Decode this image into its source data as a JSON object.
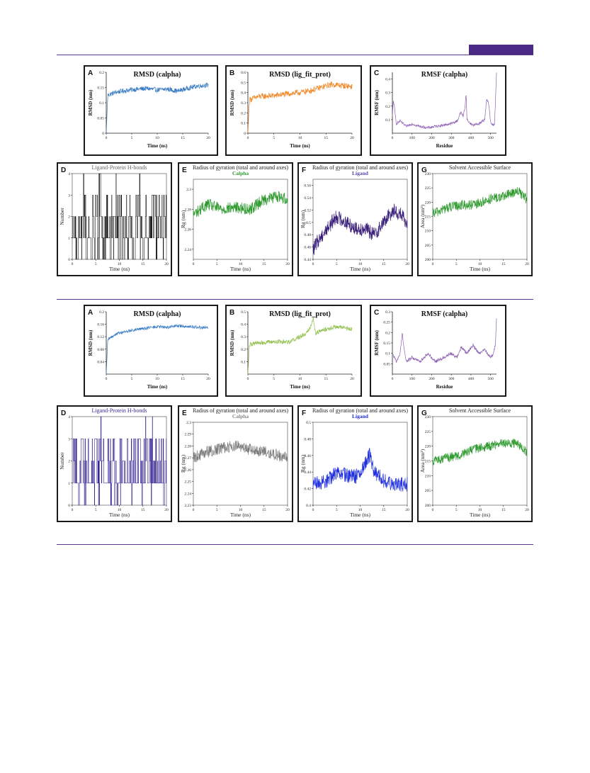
{
  "colors": {
    "rule": "#5b3a8c",
    "header_tag": "#4b2a86"
  },
  "chart_data": [
    {
      "group": 1,
      "panel": "A",
      "type": "line",
      "title": "RMSD (calpha)",
      "xlabel": "Time (ns)",
      "ylabel": "RMSD (nm)",
      "xlim": [
        0,
        20
      ],
      "ylim": [
        0,
        0.2
      ],
      "xticks": [
        0,
        5,
        10,
        15,
        20
      ],
      "yticks": [
        0,
        0.05,
        0.1,
        0.15,
        0.2
      ],
      "color": "#3a7cc4",
      "noise": 0.008,
      "series": [
        {
          "x": [
            0,
            0.3,
            2,
            5,
            8,
            10,
            12,
            14,
            16,
            18,
            20
          ],
          "y": [
            0,
            0.125,
            0.135,
            0.143,
            0.147,
            0.142,
            0.145,
            0.138,
            0.148,
            0.155,
            0.158
          ]
        }
      ]
    },
    {
      "group": 1,
      "panel": "B",
      "type": "line",
      "title": "RMSD (lig_fit_prot)",
      "xlabel": "Time (ns)",
      "ylabel": "RMSD (nm)",
      "xlim": [
        0,
        20
      ],
      "ylim": [
        0,
        0.6
      ],
      "xticks": [
        0,
        5,
        10,
        15,
        20
      ],
      "yticks": [
        0,
        0.1,
        0.2,
        0.3,
        0.4,
        0.5,
        0.6
      ],
      "color": "#f08a2c",
      "noise": 0.03,
      "series": [
        {
          "x": [
            0,
            0.3,
            2,
            5,
            8,
            10,
            12,
            14,
            16,
            18,
            20
          ],
          "y": [
            0,
            0.33,
            0.36,
            0.37,
            0.39,
            0.4,
            0.42,
            0.45,
            0.48,
            0.47,
            0.46
          ]
        }
      ]
    },
    {
      "group": 1,
      "panel": "C",
      "type": "line",
      "title": "RMSF (calpha)",
      "xlabel": "Residue",
      "ylabel": "RMSF (nm)",
      "xlim": [
        0,
        530
      ],
      "ylim": [
        0,
        0.45
      ],
      "xticks": [
        0,
        100,
        200,
        300,
        400,
        500
      ],
      "yticks": [
        0.1,
        0.2,
        0.3,
        0.4
      ],
      "color": "#8e62b3",
      "noise": 0.01,
      "series": [
        {
          "x": [
            0,
            5,
            20,
            40,
            70,
            100,
            140,
            180,
            220,
            260,
            300,
            330,
            350,
            360,
            370,
            375,
            380,
            390,
            410,
            440,
            470,
            480,
            490,
            500,
            510,
            520,
            525,
            530
          ],
          "y": [
            0.12,
            0.25,
            0.07,
            0.09,
            0.05,
            0.07,
            0.05,
            0.04,
            0.05,
            0.06,
            0.07,
            0.09,
            0.16,
            0.12,
            0.2,
            0.29,
            0.1,
            0.08,
            0.06,
            0.07,
            0.1,
            0.25,
            0.22,
            0.08,
            0.06,
            0.07,
            0.25,
            0.44
          ]
        }
      ]
    },
    {
      "group": 1,
      "panel": "D",
      "type": "line",
      "title": "Ligand-Protein H-bonds",
      "xlabel": "Time (ns)",
      "ylabel": "Number",
      "xlim": [
        0,
        20
      ],
      "ylim": [
        0,
        4
      ],
      "xticks": [
        0,
        5,
        10,
        15,
        20
      ],
      "yticks": [
        0,
        1,
        2,
        3,
        4
      ],
      "color": "#1c1c1c",
      "noise": 0,
      "series": [
        {
          "x": [
            0,
            20
          ],
          "y": [
            1,
            2
          ]
        }
      ]
    },
    {
      "group": 1,
      "panel": "E",
      "type": "line",
      "title": "Radius of gyration (total and around axes)",
      "subtitle": "Calpha",
      "xlabel": "Time (ns)",
      "ylabel": "Rg (nm)",
      "xlim": [
        0,
        20
      ],
      "ylim": [
        2.23,
        2.31
      ],
      "xticks": [
        0,
        5,
        10,
        15,
        20
      ],
      "yticks": [
        2.24,
        2.26,
        2.28,
        2.3
      ],
      "color": "#2f9a2f",
      "subcolor": "#2f9a2f",
      "noise": 0.006,
      "series": [
        {
          "x": [
            0,
            3,
            6,
            9,
            12,
            15,
            18,
            20
          ],
          "y": [
            2.275,
            2.285,
            2.28,
            2.282,
            2.28,
            2.29,
            2.293,
            2.29
          ]
        }
      ]
    },
    {
      "group": 1,
      "panel": "F",
      "type": "line",
      "title": "Radius of gyration (total and around axes)",
      "subtitle": "Ligand",
      "xlabel": "Time (ns)",
      "ylabel": "Rg (nm)",
      "xlim": [
        0,
        20
      ],
      "ylim": [
        0.44,
        0.57
      ],
      "xticks": [
        0,
        5,
        10,
        15,
        20
      ],
      "yticks": [
        0.44,
        0.46,
        0.48,
        0.5,
        0.52,
        0.54,
        0.56
      ],
      "color": "#3a1f7a",
      "subcolor": "#5a48b0",
      "noise": 0.012,
      "series": [
        {
          "x": [
            0,
            1,
            3,
            5,
            7,
            9,
            11,
            13,
            15,
            17,
            19,
            20
          ],
          "y": [
            0.455,
            0.47,
            0.49,
            0.51,
            0.5,
            0.49,
            0.49,
            0.48,
            0.5,
            0.52,
            0.51,
            0.49
          ]
        }
      ]
    },
    {
      "group": 1,
      "panel": "G",
      "type": "line",
      "title": "Solvent Accessible Surface",
      "xlabel": "Time (ns)",
      "ylabel": "Area (nm²)",
      "xlim": [
        0,
        20
      ],
      "ylim": [
        200,
        230
      ],
      "xticks": [
        0,
        5,
        10,
        15,
        20
      ],
      "yticks": [
        200,
        205,
        210,
        215,
        220,
        225,
        230
      ],
      "color": "#2f9a2f",
      "noise": 1.8,
      "series": [
        {
          "x": [
            0,
            3,
            6,
            9,
            12,
            15,
            18,
            20
          ],
          "y": [
            216,
            218,
            219,
            219,
            221,
            222,
            224,
            221
          ]
        }
      ]
    },
    {
      "group": 2,
      "panel": "A",
      "type": "line",
      "title": "RMSD (calpha)",
      "xlabel": "Time (ns)",
      "ylabel": "RMSD (nm)",
      "xlim": [
        0,
        20
      ],
      "ylim": [
        0,
        0.2
      ],
      "xticks": [
        0,
        5,
        10,
        15,
        20
      ],
      "yticks": [
        0.04,
        0.08,
        0.12,
        0.16,
        0.2
      ],
      "color": "#3a7cc4",
      "noise": 0.005,
      "series": [
        {
          "x": [
            0,
            0.3,
            2,
            5,
            8,
            10,
            12,
            14,
            16,
            18,
            20
          ],
          "y": [
            0,
            0.11,
            0.13,
            0.14,
            0.148,
            0.152,
            0.15,
            0.155,
            0.153,
            0.15,
            0.148
          ]
        }
      ]
    },
    {
      "group": 2,
      "panel": "B",
      "type": "line",
      "title": "RMSD (lig_fit_prot)",
      "xlabel": "Time (ns)",
      "ylabel": "RMSD (nm)",
      "xlim": [
        0,
        20
      ],
      "ylim": [
        0,
        0.5
      ],
      "xticks": [
        0,
        5,
        10,
        15,
        20
      ],
      "yticks": [
        0.1,
        0.2,
        0.3,
        0.4,
        0.5
      ],
      "color": "#93c04e",
      "noise": 0.018,
      "series": [
        {
          "x": [
            0,
            0.3,
            2,
            5,
            8,
            10,
            11,
            12,
            12.5,
            13,
            15,
            17,
            20
          ],
          "y": [
            0,
            0.24,
            0.25,
            0.26,
            0.26,
            0.3,
            0.32,
            0.38,
            0.45,
            0.33,
            0.36,
            0.38,
            0.36
          ]
        }
      ]
    },
    {
      "group": 2,
      "panel": "C",
      "type": "line",
      "title": "RMSF (calpha)",
      "xlabel": "Residue",
      "ylabel": "RMSF (nm)",
      "xlim": [
        0,
        530
      ],
      "ylim": [
        0,
        0.3
      ],
      "xticks": [
        0,
        100,
        200,
        300,
        400,
        500
      ],
      "yticks": [
        0.05,
        0.1,
        0.15,
        0.2,
        0.25,
        0.3
      ],
      "color": "#8e62b3",
      "noise": 0.008,
      "series": [
        {
          "x": [
            0,
            20,
            40,
            50,
            60,
            70,
            100,
            140,
            180,
            220,
            260,
            300,
            330,
            350,
            380,
            410,
            440,
            470,
            500,
            515,
            525,
            530
          ],
          "y": [
            0.1,
            0.06,
            0.1,
            0.2,
            0.12,
            0.06,
            0.08,
            0.06,
            0.1,
            0.06,
            0.08,
            0.1,
            0.08,
            0.13,
            0.1,
            0.14,
            0.1,
            0.12,
            0.08,
            0.1,
            0.15,
            0.27
          ]
        }
      ]
    },
    {
      "group": 2,
      "panel": "D",
      "type": "line",
      "title": "Ligand-Protein H-bonds",
      "xlabel": "Time (ns)",
      "ylabel": "Number",
      "xlim": [
        0,
        20
      ],
      "ylim": [
        0,
        4
      ],
      "xticks": [
        0,
        5,
        10,
        15,
        20
      ],
      "yticks": [
        0,
        1,
        2,
        3,
        4
      ],
      "color": "#3a2a96",
      "noise": 0,
      "series": [
        {
          "x": [
            0,
            20
          ],
          "y": [
            1,
            2
          ]
        }
      ]
    },
    {
      "group": 2,
      "panel": "E",
      "type": "line",
      "title": "Radius of gyration (total and around axes)",
      "subtitle": "Calpha",
      "xlabel": "Time (ns)",
      "ylabel": "Rg (nm)",
      "xlim": [
        0,
        20
      ],
      "ylim": [
        2.23,
        2.3
      ],
      "xticks": [
        0,
        5,
        10,
        15,
        20
      ],
      "yticks": [
        2.23,
        2.24,
        2.25,
        2.26,
        2.27,
        2.28,
        2.29,
        2.3
      ],
      "color": "#7a7a7a",
      "subcolor": "#8a8a8a",
      "noise": 0.005,
      "series": [
        {
          "x": [
            0,
            3,
            6,
            9,
            12,
            15,
            18,
            20
          ],
          "y": [
            2.27,
            2.275,
            2.278,
            2.28,
            2.277,
            2.275,
            2.272,
            2.27
          ]
        }
      ]
    },
    {
      "group": 2,
      "panel": "F",
      "type": "line",
      "title": "Radius of gyration (total and around axes)",
      "subtitle": "Ligand",
      "xlabel": "Time (ns)",
      "ylabel": "Rg (nm)",
      "xlim": [
        0,
        20
      ],
      "ylim": [
        0.4,
        0.5
      ],
      "xticks": [
        0,
        5,
        10,
        15,
        20
      ],
      "yticks": [
        0.4,
        0.42,
        0.44,
        0.46,
        0.48,
        0.5
      ],
      "color": "#1f2ee0",
      "subcolor": "#1f2ee0",
      "noise": 0.009,
      "series": [
        {
          "x": [
            0,
            3,
            5,
            8,
            10,
            11,
            12,
            13,
            15,
            18,
            20
          ],
          "y": [
            0.425,
            0.43,
            0.44,
            0.435,
            0.435,
            0.45,
            0.46,
            0.44,
            0.43,
            0.425,
            0.425
          ]
        }
      ]
    },
    {
      "group": 2,
      "panel": "G",
      "type": "line",
      "title": "Solvent Accessible Surface",
      "xlabel": "Time (ns)",
      "ylabel": "Area (nm²)",
      "xlim": [
        0,
        20
      ],
      "ylim": [
        200,
        230
      ],
      "xticks": [
        0,
        5,
        10,
        15,
        20
      ],
      "yticks": [
        200,
        205,
        210,
        215,
        220,
        225,
        230
      ],
      "color": "#2f9a2f",
      "noise": 1.6,
      "series": [
        {
          "x": [
            0,
            3,
            6,
            9,
            12,
            15,
            18,
            20
          ],
          "y": [
            215,
            216,
            217,
            219,
            220,
            221,
            221,
            218
          ]
        }
      ]
    }
  ]
}
